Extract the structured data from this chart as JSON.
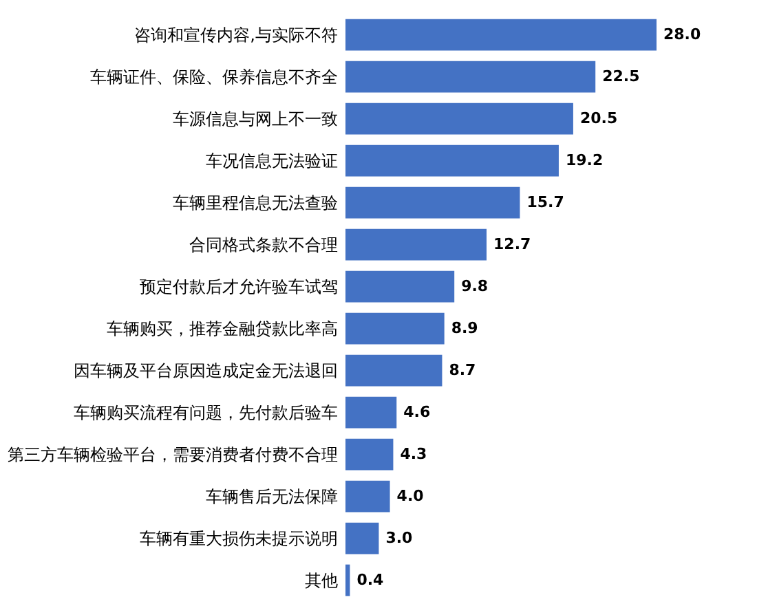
{
  "chart_data": {
    "type": "bar",
    "orientation": "horizontal",
    "categories": [
      "咨询和宣传内容,与实际不符",
      "车辆证件、保险、保养信息不齐全",
      "车源信息与网上不一致",
      "车况信息无法验证",
      "车辆里程信息无法查验",
      "合同格式条款不合理",
      "预定付款后才允许验车试驾",
      "车辆购买，推荐金融贷款比率高",
      "因车辆及平台原因造成定金无法退回",
      "车辆购买流程有问题，先付款后验车",
      "第三方车辆检验平台，需要消费者付费不合理",
      "车辆售后无法保障",
      "车辆有重大损伤未提示说明",
      "其他"
    ],
    "values": [
      28.0,
      22.5,
      20.5,
      19.2,
      15.7,
      12.7,
      9.8,
      8.9,
      8.7,
      4.6,
      4.3,
      4.0,
      3.0,
      0.4
    ],
    "value_labels": [
      "28.0",
      "22.5",
      "20.5",
      "19.2",
      "15.7",
      "12.7",
      "9.8",
      "8.9",
      "8.7",
      "4.6",
      "4.3",
      "4.0",
      "3.0",
      "0.4"
    ],
    "color": "#4472c4",
    "tick_labels": "y"
  }
}
